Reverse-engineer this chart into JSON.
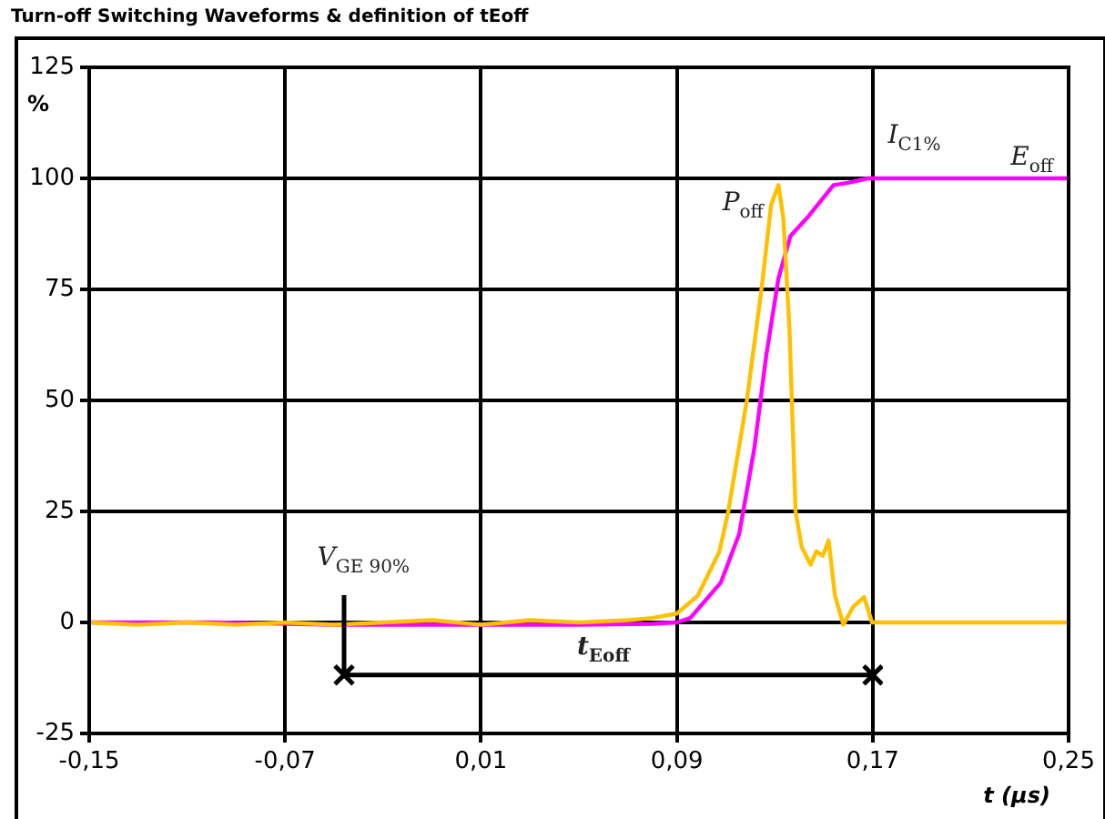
{
  "chart_data": {
    "type": "line",
    "title": "Turn-off Switching Waveforms & definition of tEoff",
    "xlabel": "t (µs)",
    "ylabel": "%",
    "xlim": [
      -0.15,
      0.25
    ],
    "xticks": [
      {
        "value": -0.15,
        "label": "-0,15"
      },
      {
        "value": -0.07,
        "label": "-0,07"
      },
      {
        "value": 0.01,
        "label": "0,01"
      },
      {
        "value": 0.09,
        "label": "0,09"
      },
      {
        "value": 0.17,
        "label": "0,17"
      },
      {
        "value": 0.25,
        "label": "0,25"
      }
    ],
    "ylim": [
      -25,
      125
    ],
    "yticks": [
      -25,
      0,
      25,
      50,
      75,
      100,
      125
    ],
    "grid": true,
    "marker": "none",
    "line_style": "solid",
    "series": [
      {
        "color": "#ffc000",
        "x": [
          -0.15,
          -0.13,
          -0.11,
          -0.09,
          -0.07,
          -0.05,
          -0.03,
          -0.01,
          0.01,
          0.03,
          0.05,
          0.07,
          0.08,
          0.09,
          0.0985,
          0.1074,
          0.111,
          0.1186,
          0.1248,
          0.1285,
          0.1315,
          0.1335,
          0.136,
          0.1385,
          0.141,
          0.1446,
          0.147,
          0.1496,
          0.152,
          0.1546,
          0.158,
          0.162,
          0.1665,
          0.1697,
          0.2,
          0.25
        ],
        "values": [
          0,
          -0.5,
          0,
          -0.5,
          0,
          -0.5,
          0,
          0.5,
          -0.5,
          0.5,
          0,
          0.5,
          1,
          2,
          6,
          16,
          25,
          50,
          76,
          94,
          98.5,
          91,
          66,
          25,
          17,
          13,
          16,
          15,
          18.5,
          6,
          -0.5,
          3.5,
          5.7,
          0,
          0,
          0
        ]
      },
      {
        "color": "#ff00ff",
        "x": [
          -0.15,
          -0.1,
          -0.05,
          0,
          0.05,
          0.08,
          0.09,
          0.0955,
          0.108,
          0.1155,
          0.1216,
          0.1265,
          0.1315,
          0.1364,
          0.144,
          0.154,
          0.16,
          0.168,
          0.2,
          0.25
        ],
        "values": [
          0,
          0,
          -0.5,
          -0.5,
          -0.5,
          -0.3,
          0,
          1,
          9,
          20,
          39,
          60,
          77.5,
          87,
          91.6,
          98.5,
          99,
          100,
          100,
          100
        ]
      }
    ],
    "annotations": [
      "P$_{off}$",
      "E$_{off}$",
      "I$_{C1%}$",
      "V$_{GE 90%}$",
      "t$_{Eoff}$"
    ]
  }
}
